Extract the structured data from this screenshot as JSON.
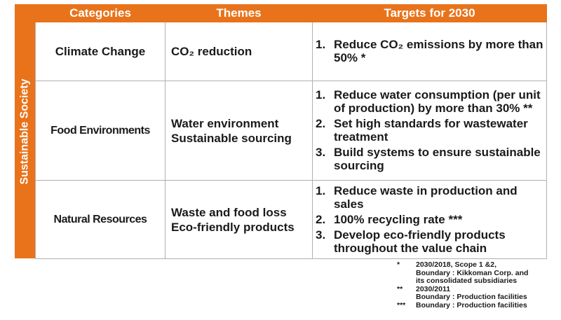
{
  "side_label": "Sustainable Society",
  "headers": [
    "Categories",
    "Themes",
    "Targets for 2030"
  ],
  "rows": [
    {
      "category": "Climate Change",
      "themes": [
        "CO₂ reduction"
      ],
      "targets": [
        {
          "num": "1.",
          "text": "Reduce CO₂ emissions by more than 50% *"
        }
      ]
    },
    {
      "category": "Food Environments",
      "themes": [
        "Water environment",
        "Sustainable sourcing"
      ],
      "targets": [
        {
          "num": "1.",
          "text": "Reduce water consumption (per unit of production) by more than 30% **"
        },
        {
          "num": "2.",
          "text": "Set high standards for wastewater treatment"
        },
        {
          "num": "3.",
          "text": "Build systems to ensure sustainable sourcing"
        }
      ]
    },
    {
      "category": "Natural Resources",
      "themes": [
        "Waste and food loss",
        "Eco-friendly products"
      ],
      "targets": [
        {
          "num": "1.",
          "text": "Reduce waste in production and sales"
        },
        {
          "num": "2.",
          "text": "100% recycling rate ***"
        },
        {
          "num": "3.",
          "text": "Develop eco-friendly products throughout the value chain"
        }
      ]
    }
  ],
  "notes": [
    {
      "mark": "*",
      "lines": [
        "2030/2018, Scope 1 &2,",
        "Boundary : Kikkoman Corp. and",
        "its consolidated subsidiaries"
      ]
    },
    {
      "mark": "**",
      "lines": [
        "2030/2011",
        "Boundary : Production facilities"
      ]
    },
    {
      "mark": "***",
      "lines": [
        "Boundary : Production facilities"
      ]
    }
  ],
  "colors": {
    "accent": "#e8731b",
    "grid": "#b0b0b0"
  }
}
